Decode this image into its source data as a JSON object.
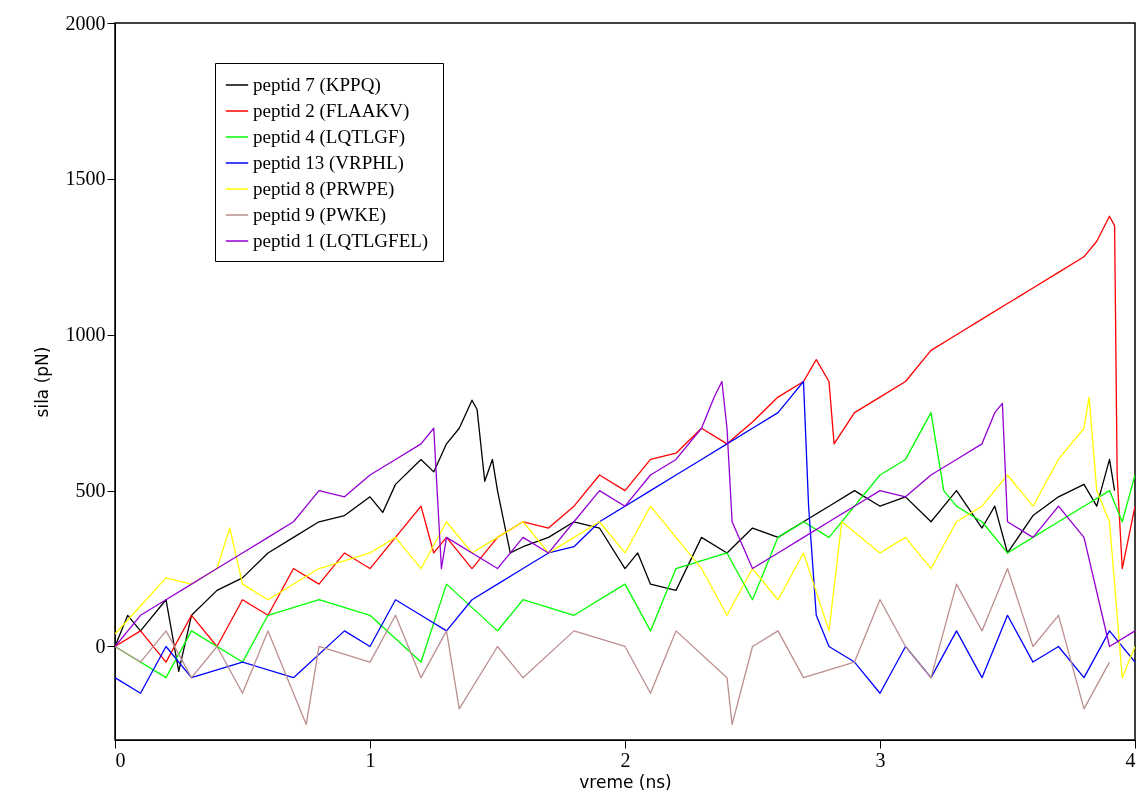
{
  "chart_data": {
    "type": "line",
    "xlabel": "vreme (ns)",
    "ylabel": "sila (pN)",
    "xlim": [
      0,
      4
    ],
    "ylim": [
      -300,
      2000
    ],
    "xticks": [
      0,
      1,
      2,
      3,
      4
    ],
    "yticks": [
      0,
      500,
      1000,
      1500,
      2000
    ],
    "grid": false,
    "legend": "top left",
    "marker": "none",
    "line_style": "solid",
    "series": [
      {
        "name": "peptid  7 (KPPQ)",
        "color": "#000000",
        "x": [
          0,
          0.05,
          0.1,
          0.2,
          0.25,
          0.3,
          0.4,
          0.5,
          0.6,
          0.7,
          0.8,
          0.9,
          1.0,
          1.05,
          1.1,
          1.2,
          1.25,
          1.3,
          1.35,
          1.4,
          1.42,
          1.45,
          1.48,
          1.5,
          1.55,
          1.6,
          1.7,
          1.8,
          1.9,
          2.0,
          2.05,
          2.1,
          2.2,
          2.3,
          2.4,
          2.5,
          2.6,
          2.7,
          2.8,
          2.9,
          3.0,
          3.1,
          3.2,
          3.3,
          3.4,
          3.45,
          3.5,
          3.6,
          3.7,
          3.8,
          3.85,
          3.9,
          3.92
        ],
        "values": [
          0,
          100,
          50,
          150,
          -80,
          100,
          180,
          220,
          300,
          350,
          400,
          420,
          480,
          430,
          520,
          600,
          560,
          650,
          700,
          790,
          760,
          530,
          600,
          500,
          300,
          320,
          350,
          400,
          380,
          250,
          300,
          200,
          180,
          350,
          300,
          380,
          350,
          400,
          450,
          500,
          450,
          480,
          400,
          500,
          380,
          450,
          300,
          420,
          480,
          520,
          450,
          600,
          500
        ]
      },
      {
        "name": "peptid  2 (FLAAKV)",
        "color": "#ff0000",
        "x": [
          0,
          0.1,
          0.2,
          0.3,
          0.4,
          0.5,
          0.6,
          0.7,
          0.8,
          0.9,
          1.0,
          1.1,
          1.2,
          1.25,
          1.3,
          1.4,
          1.5,
          1.6,
          1.7,
          1.8,
          1.9,
          2.0,
          2.1,
          2.2,
          2.3,
          2.4,
          2.5,
          2.6,
          2.7,
          2.75,
          2.8,
          2.82,
          2.9,
          3.0,
          3.1,
          3.2,
          3.3,
          3.4,
          3.5,
          3.6,
          3.7,
          3.8,
          3.85,
          3.9,
          3.92,
          3.93,
          3.95,
          4.0
        ],
        "values": [
          0,
          50,
          -50,
          100,
          0,
          150,
          100,
          250,
          200,
          300,
          250,
          350,
          450,
          300,
          350,
          250,
          350,
          400,
          380,
          450,
          550,
          500,
          600,
          620,
          700,
          650,
          720,
          800,
          850,
          920,
          850,
          650,
          750,
          800,
          850,
          950,
          1000,
          1050,
          1100,
          1150,
          1200,
          1250,
          1300,
          1380,
          1350,
          550,
          250,
          450
        ]
      },
      {
        "name": "peptid  4 (LQTLGF)",
        "color": "#00ff00",
        "x": [
          0,
          0.2,
          0.3,
          0.5,
          0.6,
          0.8,
          1.0,
          1.2,
          1.3,
          1.5,
          1.6,
          1.8,
          2.0,
          2.1,
          2.2,
          2.4,
          2.5,
          2.6,
          2.7,
          2.8,
          2.9,
          3.0,
          3.1,
          3.2,
          3.25,
          3.3,
          3.4,
          3.5,
          3.6,
          3.7,
          3.8,
          3.9,
          3.95,
          4.0
        ],
        "values": [
          0,
          -100,
          50,
          -50,
          100,
          150,
          100,
          -50,
          200,
          50,
          150,
          100,
          200,
          50,
          250,
          300,
          150,
          350,
          400,
          350,
          450,
          550,
          600,
          750,
          500,
          450,
          400,
          300,
          350,
          400,
          450,
          500,
          400,
          550
        ]
      },
      {
        "name": "peptid  13 (VRPHL)",
        "color": "#0000ff",
        "x": [
          0,
          0.1,
          0.2,
          0.3,
          0.5,
          0.7,
          0.9,
          1.0,
          1.1,
          1.2,
          1.3,
          1.4,
          1.5,
          1.6,
          1.7,
          1.8,
          1.9,
          2.0,
          2.1,
          2.2,
          2.3,
          2.4,
          2.5,
          2.6,
          2.65,
          2.7,
          2.72,
          2.75,
          2.8,
          2.9,
          3.0,
          3.1,
          3.2,
          3.3,
          3.4,
          3.5,
          3.6,
          3.7,
          3.8,
          3.9,
          4.0
        ],
        "values": [
          -100,
          -150,
          0,
          -100,
          -50,
          -100,
          50,
          0,
          150,
          100,
          50,
          150,
          200,
          250,
          300,
          320,
          400,
          450,
          500,
          550,
          600,
          650,
          700,
          750,
          800,
          850,
          450,
          100,
          0,
          -50,
          -150,
          0,
          -100,
          50,
          -100,
          100,
          -50,
          0,
          -100,
          50,
          -50
        ]
      },
      {
        "name": "peptid  8 (PRWPE)",
        "color": "#ffff00",
        "x": [
          0,
          0.1,
          0.2,
          0.3,
          0.4,
          0.45,
          0.5,
          0.6,
          0.8,
          1.0,
          1.1,
          1.2,
          1.3,
          1.4,
          1.5,
          1.6,
          1.7,
          1.8,
          1.9,
          2.0,
          2.1,
          2.2,
          2.3,
          2.4,
          2.5,
          2.6,
          2.7,
          2.8,
          2.85,
          3.0,
          3.1,
          3.2,
          3.3,
          3.4,
          3.5,
          3.6,
          3.7,
          3.8,
          3.82,
          3.85,
          3.9,
          3.95,
          4.0
        ],
        "values": [
          40,
          130,
          220,
          200,
          250,
          380,
          200,
          150,
          250,
          300,
          350,
          250,
          400,
          300,
          350,
          400,
          300,
          350,
          400,
          300,
          450,
          350,
          250,
          100,
          250,
          150,
          300,
          50,
          400,
          300,
          350,
          250,
          400,
          450,
          550,
          450,
          600,
          700,
          800,
          500,
          400,
          -100,
          0
        ]
      },
      {
        "name": "peptid  9 (PWKE)",
        "color": "#bc8f8f",
        "x": [
          0,
          0.1,
          0.2,
          0.3,
          0.4,
          0.5,
          0.6,
          0.75,
          0.8,
          1.0,
          1.1,
          1.2,
          1.3,
          1.35,
          1.5,
          1.6,
          1.8,
          2.0,
          2.1,
          2.2,
          2.4,
          2.42,
          2.5,
          2.6,
          2.7,
          2.9,
          3.0,
          3.1,
          3.2,
          3.3,
          3.4,
          3.5,
          3.6,
          3.7,
          3.8,
          3.9
        ],
        "values": [
          0,
          -50,
          50,
          -100,
          0,
          -150,
          50,
          -250,
          0,
          -50,
          100,
          -100,
          50,
          -200,
          0,
          -100,
          50,
          0,
          -150,
          50,
          -100,
          -250,
          0,
          50,
          -100,
          -50,
          150,
          0,
          -100,
          200,
          50,
          250,
          0,
          100,
          -200,
          -50
        ]
      },
      {
        "name": "peptid  1 (LQTLGFEL)",
        "color": "#9400d3",
        "x": [
          0,
          0.1,
          0.2,
          0.3,
          0.4,
          0.5,
          0.6,
          0.7,
          0.8,
          0.9,
          1.0,
          1.1,
          1.2,
          1.25,
          1.28,
          1.3,
          1.4,
          1.5,
          1.6,
          1.7,
          1.8,
          1.9,
          2.0,
          2.1,
          2.2,
          2.3,
          2.35,
          2.38,
          2.4,
          2.42,
          2.5,
          2.6,
          2.7,
          2.8,
          2.9,
          3.0,
          3.1,
          3.2,
          3.3,
          3.4,
          3.45,
          3.48,
          3.5,
          3.6,
          3.7,
          3.8,
          3.9,
          4.0
        ],
        "values": [
          0,
          100,
          150,
          200,
          250,
          300,
          350,
          400,
          500,
          480,
          550,
          600,
          650,
          700,
          250,
          350,
          300,
          250,
          350,
          300,
          400,
          500,
          450,
          550,
          600,
          700,
          800,
          850,
          700,
          400,
          250,
          300,
          350,
          400,
          450,
          500,
          480,
          550,
          600,
          650,
          750,
          780,
          400,
          350,
          450,
          350,
          0,
          50
        ]
      }
    ]
  }
}
